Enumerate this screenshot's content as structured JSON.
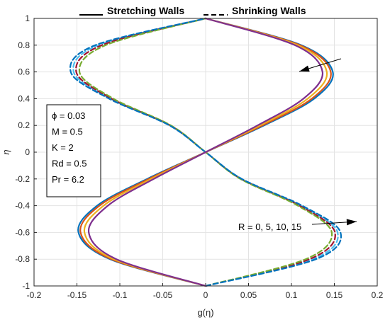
{
  "chart_data": {
    "type": "line",
    "title": "",
    "xlabel": "g(η)",
    "ylabel": "η",
    "xlim": [
      -0.2,
      0.2
    ],
    "ylim": [
      -1,
      1
    ],
    "x_ticks": [
      "-0.2",
      "-0.15",
      "-0.1",
      "-0.05",
      "0",
      "0.05",
      "0.1",
      "0.15",
      "0.2"
    ],
    "y_ticks": [
      "1",
      "0.8",
      "0.6",
      "0.4",
      "0.2",
      "0",
      "-0.2",
      "-0.4",
      "-0.6",
      "-0.8",
      "-1"
    ],
    "grid": true,
    "legend": {
      "stretching": "Stretching Walls",
      "shrinking": "Shrinking Walls",
      "stretching_style": "solid",
      "shrinking_style": "dashed",
      "placement": "top"
    },
    "parameter_box": [
      "ϕ = 0.03",
      "M = 0.5",
      "K = 2",
      "Rd = 0.5",
      "Pr = 6.2"
    ],
    "annotation": "R = 0, 5, 10, 15",
    "series": [
      {
        "wall": "stretching",
        "R": 0,
        "color": "#0072BD",
        "eta": [
          -1,
          -0.8,
          -0.6,
          -0.4,
          -0.2,
          0,
          0.2,
          0.4,
          0.6,
          0.8,
          1
        ],
        "g": [
          0,
          -0.1113,
          -0.1482,
          -0.1265,
          -0.0682,
          0,
          0.0682,
          0.1265,
          0.1482,
          0.1113,
          0
        ]
      },
      {
        "wall": "stretching",
        "R": 5,
        "color": "#D95319",
        "eta": [
          -1,
          -0.8,
          -0.6,
          -0.4,
          -0.2,
          0,
          0.2,
          0.4,
          0.6,
          0.8,
          1
        ],
        "g": [
          0,
          -0.1098,
          -0.1458,
          -0.1238,
          -0.0664,
          0,
          0.0664,
          0.1238,
          0.1458,
          0.1098,
          0
        ]
      },
      {
        "wall": "stretching",
        "R": 10,
        "color": "#EDB120",
        "eta": [
          -1,
          -0.8,
          -0.6,
          -0.4,
          -0.2,
          0,
          0.2,
          0.4,
          0.6,
          0.8,
          1
        ],
        "g": [
          0,
          -0.107,
          -0.1412,
          -0.119,
          -0.0635,
          0,
          0.0635,
          0.119,
          0.1412,
          0.107,
          0
        ]
      },
      {
        "wall": "stretching",
        "R": 15,
        "color": "#7E2F8E",
        "eta": [
          -1,
          -0.8,
          -0.6,
          -0.4,
          -0.2,
          0,
          0.2,
          0.4,
          0.6,
          0.8,
          1
        ],
        "g": [
          0,
          -0.104,
          -0.1362,
          -0.114,
          -0.0605,
          0,
          0.0605,
          0.114,
          0.1362,
          0.104,
          0
        ]
      },
      {
        "wall": "shrinking",
        "R": 0,
        "color": "#4DBEEE",
        "eta": [
          -1,
          -0.8,
          -0.6,
          -0.4,
          -0.2,
          0,
          0.2,
          0.4,
          0.6,
          0.8,
          1
        ],
        "g": [
          0,
          0.125,
          0.1538,
          0.111,
          0.0418,
          0,
          -0.0418,
          -0.111,
          -0.1538,
          -0.125,
          0
        ]
      },
      {
        "wall": "shrinking",
        "R": 5,
        "color": "#A2142F",
        "eta": [
          -1,
          -0.8,
          -0.6,
          -0.4,
          -0.2,
          0,
          0.2,
          0.4,
          0.6,
          0.8,
          1
        ],
        "g": [
          0,
          0.121,
          0.1508,
          0.1095,
          0.0412,
          0,
          -0.0412,
          -0.1095,
          -0.1508,
          -0.121,
          0
        ]
      },
      {
        "wall": "shrinking",
        "R": 10,
        "color": "#77AC30",
        "eta": [
          -1,
          -0.8,
          -0.6,
          -0.4,
          -0.2,
          0,
          0.2,
          0.4,
          0.6,
          0.8,
          1
        ],
        "g": [
          0,
          0.1165,
          0.147,
          0.1075,
          0.0405,
          0,
          -0.0405,
          -0.1075,
          -0.147,
          -0.1165,
          0
        ]
      },
      {
        "wall": "shrinking",
        "R": 15,
        "color": "#0072BD",
        "eta": [
          -1,
          -0.8,
          -0.6,
          -0.4,
          -0.2,
          0,
          0.2,
          0.4,
          0.6,
          0.8,
          1
        ],
        "g": [
          0,
          0.1285,
          0.1572,
          0.1125,
          0.0422,
          0,
          -0.0422,
          -0.1125,
          -0.1572,
          -0.1285,
          0
        ]
      }
    ]
  }
}
